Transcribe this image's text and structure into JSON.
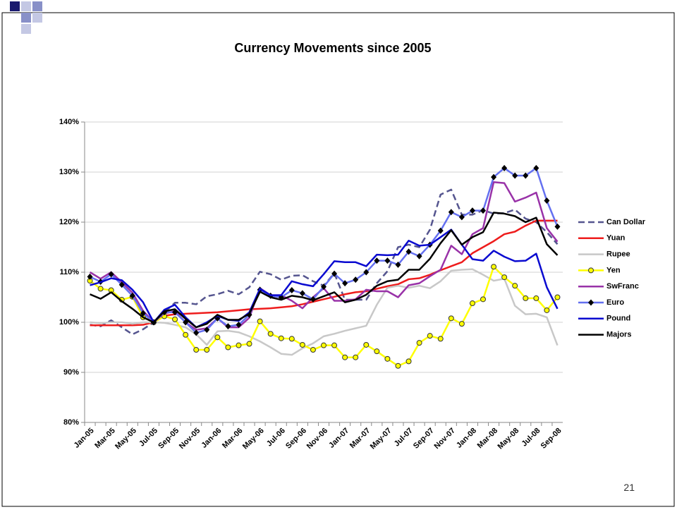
{
  "chart_data": {
    "type": "line",
    "title": "Currency Movements since 2005",
    "categories": [
      "Jan-05",
      null,
      "Mar-05",
      null,
      "May-05",
      null,
      "Jul-05",
      null,
      "Sep-05",
      null,
      "Nov-05",
      null,
      "Jan-06",
      null,
      "Mar-06",
      null,
      "May-06",
      null,
      "Jul-06",
      null,
      "Sep-06",
      null,
      "Nov-06",
      null,
      "Jan-07",
      null,
      "Mar-07",
      null,
      "May-07",
      null,
      "Jul-07",
      null,
      "Sep-07",
      null,
      "Nov-07",
      null,
      "Jan-08",
      null,
      "Mar-08",
      null,
      "May-08",
      null,
      "Jul-08",
      null,
      "Sep-08"
    ],
    "ylim": [
      80,
      140
    ],
    "yticks": [
      {
        "value": 80,
        "label": "80%"
      },
      {
        "value": 90,
        "label": "90%"
      },
      {
        "value": 100,
        "label": "100%"
      },
      {
        "value": 110,
        "label": "110%"
      },
      {
        "value": 120,
        "label": "120%"
      },
      {
        "value": 130,
        "label": "130%"
      },
      {
        "value": 140,
        "label": "140%"
      }
    ],
    "grid": true,
    "legend": "right",
    "series": [
      {
        "name": "Can Dollar",
        "color": "#55558f",
        "dash": true,
        "values": [
          99.5,
          99.2,
          100.4,
          99,
          97.6,
          98.6,
          100,
          102,
          103.9,
          103.9,
          103.6,
          105.2,
          105.6,
          106.3,
          105.6,
          107,
          110.1,
          109.6,
          108.5,
          109.3,
          109.4,
          108.2,
          107.3,
          109.8,
          104.5,
          104.5,
          104.5,
          107.8,
          110.2,
          115,
          115.5,
          115,
          118.5,
          125.5,
          126.5,
          121.5,
          121.5,
          122.4,
          121.7,
          121.8,
          122.5,
          120.7,
          120,
          118,
          115.6
        ]
      },
      {
        "name": "Yuan",
        "color": "#ee1c1c",
        "values": [
          99.4,
          99.4,
          99.4,
          99.4,
          99.4,
          99.5,
          100,
          101.3,
          101.6,
          101.7,
          101.8,
          101.9,
          102,
          102.2,
          102.4,
          102.6,
          102.7,
          102.8,
          103,
          103.2,
          103.6,
          104.1,
          104.6,
          105.1,
          105.6,
          106,
          106.2,
          106.7,
          107.2,
          107.6,
          108.6,
          108.8,
          109.5,
          110.4,
          111.2,
          112,
          113.8,
          115,
          116.2,
          117.6,
          118.1,
          119.3,
          120.3,
          120.3,
          120.3
        ]
      },
      {
        "name": "Rupee",
        "color": "#c8c8c8",
        "values": [
          100,
          99.8,
          100,
          100,
          99.7,
          100,
          100,
          99.9,
          99.5,
          99,
          97.6,
          95.5,
          98.2,
          98.3,
          98,
          97.2,
          96.2,
          95,
          93.7,
          93.5,
          94.8,
          95.8,
          97.2,
          97.7,
          98.3,
          98.8,
          99.3,
          103.5,
          106.9,
          107.3,
          106.9,
          107.3,
          106.8,
          108.2,
          110.3,
          110.5,
          110.6,
          109.5,
          108.3,
          108.7,
          103.3,
          101.6,
          101.7,
          101,
          95.4
        ]
      },
      {
        "name": "Yen",
        "color": "#ffff00",
        "marker": "circle",
        "values": [
          108.3,
          106.7,
          106.4,
          104.5,
          105.1,
          101,
          100,
          101.2,
          100.6,
          97.5,
          94.5,
          94.5,
          97,
          95,
          95.4,
          95.7,
          100.2,
          97.7,
          96.8,
          96.7,
          95.5,
          94.5,
          95.4,
          95.4,
          93,
          93,
          95.5,
          94.2,
          92.7,
          91.3,
          92.2,
          95.9,
          97.3,
          96.7,
          100.8,
          99.7,
          103.8,
          104.6,
          111.1,
          109,
          107.3,
          104.8,
          104.8,
          102.4,
          105
        ]
      },
      {
        "name": "SwFranc",
        "color": "#9932a8",
        "values": [
          110,
          108.7,
          110,
          108,
          105.9,
          102.3,
          100,
          101.8,
          102.2,
          100,
          98.5,
          98.8,
          100.8,
          99,
          99,
          100.9,
          106.8,
          105.4,
          105.4,
          104.3,
          102.8,
          105,
          106.8,
          104.3,
          104.3,
          104.6,
          106.5,
          106.2,
          106.2,
          105,
          107.4,
          107.8,
          109.2,
          110.5,
          115.3,
          113.6,
          117.6,
          118.8,
          128,
          127.8,
          124.1,
          124.9,
          125.9,
          118.8,
          116.1
        ]
      },
      {
        "name": "Euro",
        "color": "#6470f0",
        "marker": "diamond",
        "values": [
          109.1,
          108.1,
          109.6,
          107.5,
          105.3,
          101.8,
          100,
          102,
          102,
          100,
          97.9,
          98.5,
          100.8,
          99.2,
          99.5,
          101.5,
          106.5,
          105.3,
          105,
          106.4,
          105.8,
          104.6,
          107.1,
          109.7,
          107.8,
          108.5,
          110,
          112.3,
          112.3,
          111.5,
          114.1,
          113.2,
          115.5,
          118.3,
          122,
          121,
          122.3,
          122.3,
          129,
          130.8,
          129.3,
          129.3,
          130.8,
          124.3,
          119.1
        ]
      },
      {
        "name": "Pound",
        "color": "#0a0ad0",
        "values": [
          107.4,
          108,
          108.8,
          108.4,
          106.5,
          104,
          100,
          102.5,
          103.5,
          101,
          99,
          100,
          101.3,
          100.5,
          100.3,
          102,
          106.7,
          105.4,
          105.4,
          108.2,
          107.6,
          107.2,
          109.6,
          112.2,
          112,
          112,
          111.2,
          113.5,
          113.4,
          113.5,
          116.3,
          115.3,
          115.5,
          117,
          118.5,
          115.5,
          112.6,
          112.3,
          114.3,
          113.1,
          112.2,
          112.3,
          113.7,
          107,
          102.7
        ]
      },
      {
        "name": "Majors",
        "color": "#000000",
        "values": [
          105.6,
          104.7,
          106,
          104.2,
          102.7,
          101,
          100,
          102.2,
          102.6,
          100.7,
          99,
          99.7,
          101.5,
          100.5,
          100.5,
          101.7,
          106.1,
          105,
          104.5,
          105.3,
          105,
          104.4,
          105.2,
          106,
          104,
          104.5,
          105.5,
          107.3,
          108.2,
          108.5,
          110.5,
          110.5,
          112.7,
          115.8,
          118.4,
          115.5,
          117,
          118,
          121.9,
          121.7,
          121.2,
          120,
          120.9,
          115.6,
          113.4
        ]
      }
    ]
  },
  "slide_number": "21"
}
